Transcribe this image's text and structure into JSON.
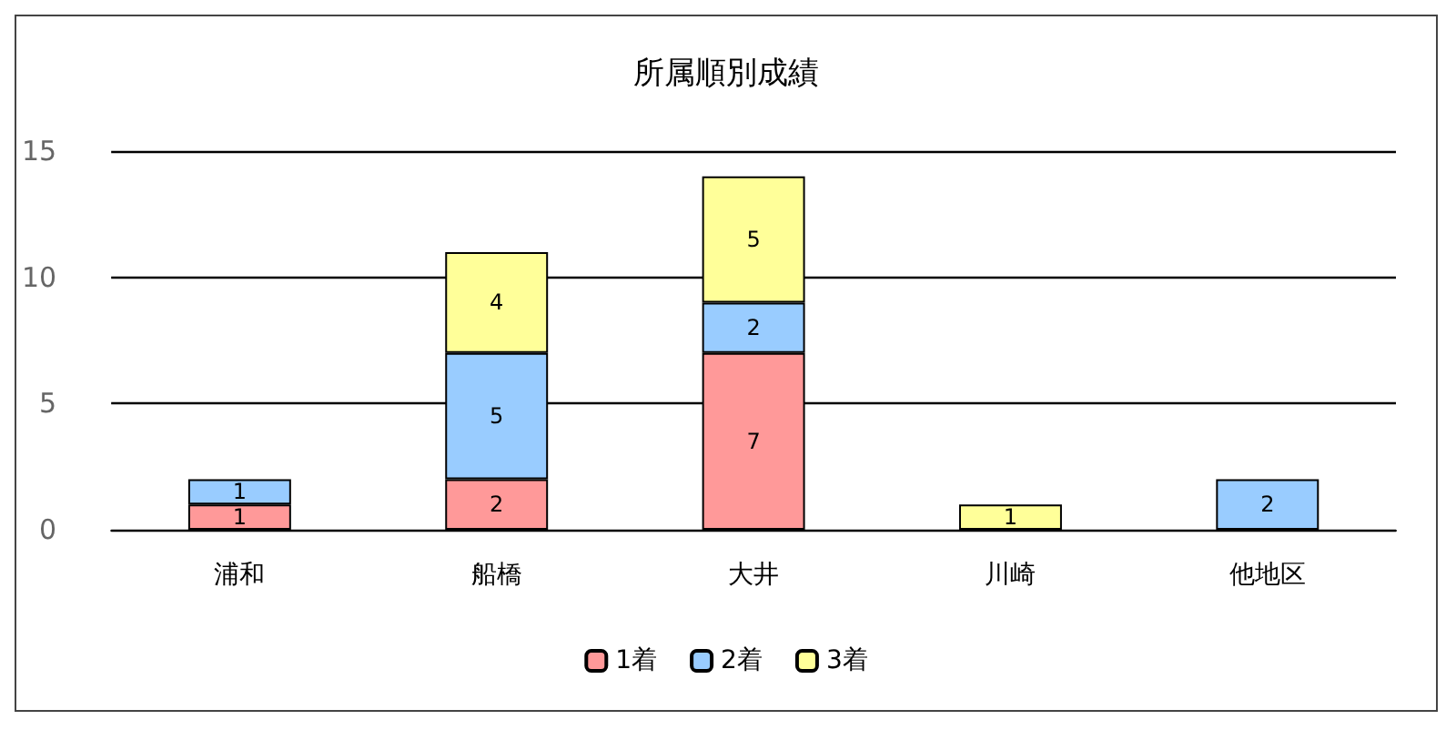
{
  "chart_data": {
    "type": "bar",
    "title": "所属順別成績",
    "categories": [
      "浦和",
      "船橋",
      "大井",
      "川崎",
      "他地区"
    ],
    "series": [
      {
        "name": "1着",
        "color": "#ff9999",
        "values": [
          1,
          2,
          7,
          null,
          null
        ]
      },
      {
        "name": "2着",
        "color": "#99ccff",
        "values": [
          1,
          5,
          2,
          null,
          2
        ]
      },
      {
        "name": "3着",
        "color": "#ffff99",
        "values": [
          null,
          4,
          5,
          1,
          null
        ]
      }
    ],
    "stacked": true,
    "ylim": [
      0,
      15
    ],
    "yticks": [
      0,
      5,
      10,
      15
    ],
    "grid": "y",
    "legend": "bottom",
    "data_labels": true
  }
}
